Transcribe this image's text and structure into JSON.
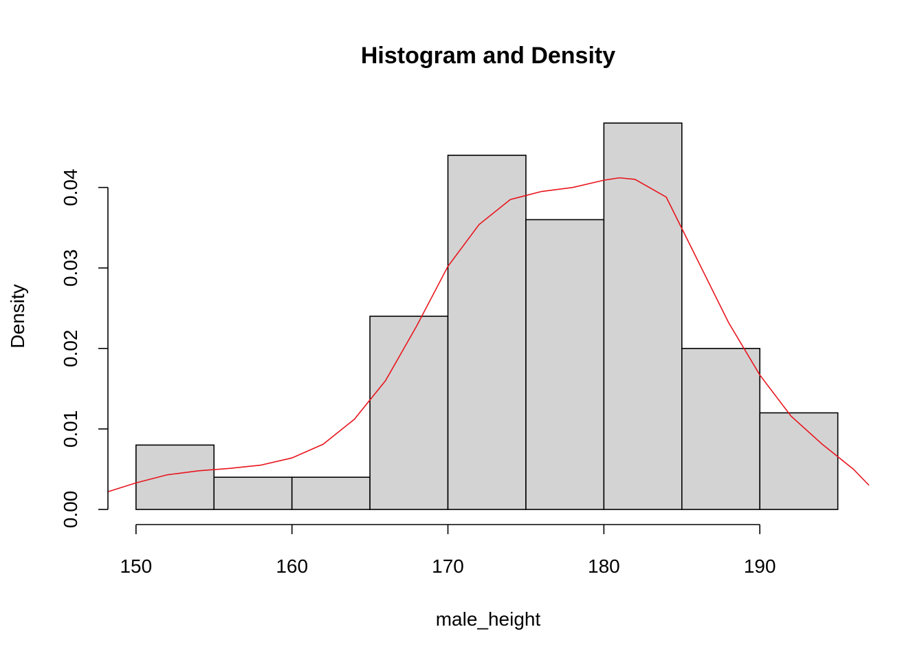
{
  "chart_data": {
    "type": "bar",
    "title": "Histogram and Density",
    "xlabel": "male_height",
    "ylabel": "Density",
    "bins": [
      {
        "start": 150,
        "end": 155,
        "density": 0.008
      },
      {
        "start": 155,
        "end": 160,
        "density": 0.004
      },
      {
        "start": 160,
        "end": 165,
        "density": 0.004
      },
      {
        "start": 165,
        "end": 170,
        "density": 0.024
      },
      {
        "start": 170,
        "end": 175,
        "density": 0.044
      },
      {
        "start": 175,
        "end": 180,
        "density": 0.036
      },
      {
        "start": 180,
        "end": 185,
        "density": 0.048
      },
      {
        "start": 185,
        "end": 190,
        "density": 0.02
      },
      {
        "start": 190,
        "end": 195,
        "density": 0.012
      }
    ],
    "density_curve": {
      "x": [
        148.2,
        150,
        152,
        154,
        156,
        158,
        160,
        162,
        164,
        166,
        168,
        170,
        172,
        174,
        176,
        178,
        180,
        181,
        182,
        184,
        186,
        188,
        190,
        192,
        194,
        196,
        197
      ],
      "y": [
        0.0022,
        0.0033,
        0.0043,
        0.0048,
        0.0051,
        0.0055,
        0.0064,
        0.0081,
        0.0112,
        0.016,
        0.0228,
        0.0302,
        0.0354,
        0.0385,
        0.0395,
        0.04,
        0.0409,
        0.0412,
        0.041,
        0.0388,
        0.031,
        0.0232,
        0.0167,
        0.0116,
        0.0081,
        0.005,
        0.003
      ]
    },
    "x_ticks": [
      150,
      160,
      170,
      180,
      190
    ],
    "x_tick_labels": [
      "150",
      "160",
      "170",
      "180",
      "190"
    ],
    "y_ticks": [
      0,
      0.01,
      0.02,
      0.03,
      0.04
    ],
    "y_tick_labels": [
      "0.00",
      "0.01",
      "0.02",
      "0.03",
      "0.04"
    ],
    "xlim": [
      148.2,
      197.0
    ],
    "ylim": [
      0,
      0.048
    ],
    "grid": false,
    "colors": {
      "bar_fill": "#d3d3d3",
      "bar_stroke": "#000000",
      "density_line": "#e8141c"
    }
  }
}
